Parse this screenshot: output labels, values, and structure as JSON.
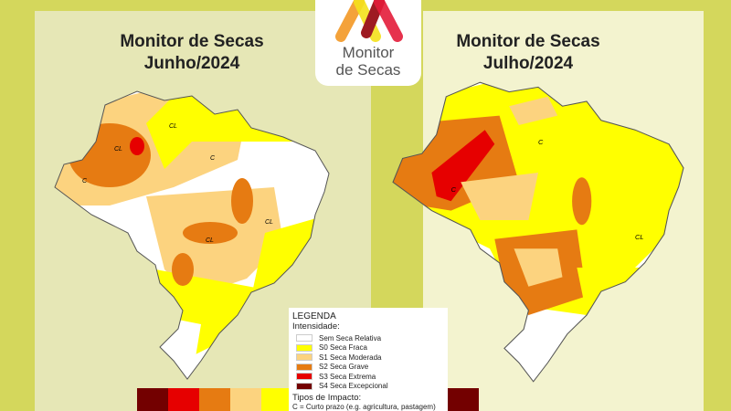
{
  "logo": {
    "line1": "Monitor",
    "line2": "de Secas"
  },
  "maps": [
    {
      "title1": "Monitor de Secas",
      "title2": "Junho/2024"
    },
    {
      "title1": "Monitor de Secas",
      "title2": "Julho/2024"
    }
  ],
  "map_labels": [
    "C",
    "CL"
  ],
  "legend": {
    "title": "LEGENDA",
    "subtitle": "Intensidade:",
    "items": [
      {
        "label": "Sem Seca Relativa",
        "color": "#ffffff"
      },
      {
        "label": "S0 Seca Fraca",
        "color": "#ffff00"
      },
      {
        "label": "S1 Seca Moderada",
        "color": "#fcd37f"
      },
      {
        "label": "S2 Seca Grave",
        "color": "#e67b12"
      },
      {
        "label": "S3 Seca Extrema",
        "color": "#e60000"
      },
      {
        "label": "S4 Seca Excepcional",
        "color": "#730000"
      }
    ],
    "impact_title": "Tipos de Impacto:",
    "impact_c": "C = Curto prazo (e.g. agricultura, pastagem)"
  },
  "bar_colors": [
    "#730000",
    "#e60000",
    "#e67b12",
    "#fcd37f",
    "#ffff00",
    "#ffffff",
    "#ffff00",
    "#fcd37f",
    "#e67b12",
    "#e60000",
    "#730000"
  ]
}
